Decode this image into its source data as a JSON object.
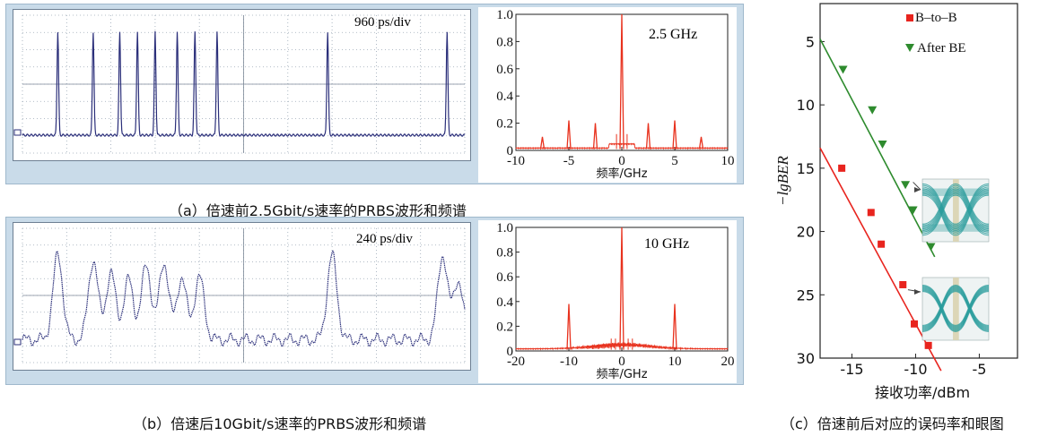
{
  "captions": {
    "a": "（a）倍速前2.5Gbit/s速率的PRBS波形和频谱",
    "b": "（b）倍速后10Gbit/s速率的PRBS波形和频谱",
    "c": "（c）倍速前后对应的误码率和眼图"
  },
  "colors": {
    "panel_bg": "#c9dbe9",
    "scope_trace": "#2b2f7a",
    "spectrum": "#e8321e",
    "b2b": "#e8241e",
    "after_be": "#2e8b2e",
    "eye": "#2a9c9c"
  },
  "chart_data": [
    {
      "id": "scope_a",
      "type": "line",
      "title": "",
      "annotation": "960 ps/div",
      "pulse_positions": [
        0.08,
        0.16,
        0.22,
        0.26,
        0.3,
        0.35,
        0.39,
        0.44,
        0.69,
        0.96
      ],
      "pulse_shape": "narrow"
    },
    {
      "id": "spectrum_a",
      "type": "line",
      "annotation": "2.5 GHz",
      "xlabel": "频率/GHz",
      "xlim": [
        -10,
        10
      ],
      "ylim": [
        0,
        1.0
      ],
      "xticks": [
        "-10",
        "-5",
        "0",
        "5",
        "10"
      ],
      "yticks": [
        "0",
        "0.2",
        "0.4",
        "0.6",
        "0.8",
        "1.0"
      ],
      "peaks": [
        {
          "x": -7.5,
          "y": 0.1
        },
        {
          "x": -5,
          "y": 0.22
        },
        {
          "x": -2.5,
          "y": 0.2
        },
        {
          "x": 0,
          "y": 1.0
        },
        {
          "x": 2.5,
          "y": 0.2
        },
        {
          "x": 5,
          "y": 0.22
        },
        {
          "x": 7.5,
          "y": 0.1
        }
      ]
    },
    {
      "id": "scope_b",
      "type": "line",
      "annotation": "240 ps/div",
      "pulse_positions": [
        0.08,
        0.16,
        0.2,
        0.24,
        0.28,
        0.32,
        0.36,
        0.4,
        0.7,
        0.95,
        0.985
      ],
      "pulse_shape": "wide"
    },
    {
      "id": "spectrum_b",
      "type": "line",
      "annotation": "10 GHz",
      "xlabel": "频率/GHz",
      "xlim": [
        -20,
        20
      ],
      "ylim": [
        0,
        1.0
      ],
      "xticks": [
        "-20",
        "-10",
        "0",
        "10",
        "20"
      ],
      "yticks": [
        "0",
        "0.2",
        "0.4",
        "0.6",
        "0.8",
        "1.0"
      ],
      "peaks": [
        {
          "x": -10,
          "y": 0.38
        },
        {
          "x": 0,
          "y": 1.0
        },
        {
          "x": 10,
          "y": 0.38
        }
      ]
    },
    {
      "id": "ber",
      "type": "scatter",
      "xlabel": "接收功率/dBm",
      "ylabel": "−lgBER",
      "xlim": [
        -17.5,
        -2
      ],
      "ylim": [
        30,
        2
      ],
      "xticks": [
        "-15",
        "-10",
        "-5"
      ],
      "yticks": [
        "5",
        "10",
        "15",
        "20",
        "25",
        "30"
      ],
      "series": [
        {
          "name": "B–to–B",
          "marker": "square",
          "points": [
            [
              -15.8,
              15
            ],
            [
              -13.5,
              18.5
            ],
            [
              -12.7,
              21
            ],
            [
              -11,
              24.2
            ],
            [
              -10.1,
              27.3
            ],
            [
              -9,
              29
            ]
          ],
          "fit": [
            [
              -17.5,
              13.4
            ],
            [
              -8.0,
              31.0
            ]
          ]
        },
        {
          "name": "After BE",
          "marker": "triangle-down",
          "points": [
            [
              -15.7,
              7.2
            ],
            [
              -13.4,
              10.4
            ],
            [
              -12.6,
              13.1
            ],
            [
              -10.8,
              16.3
            ],
            [
              -10.2,
              18.3
            ],
            [
              -8.8,
              21.2
            ]
          ],
          "fit": [
            [
              -17.5,
              4.8
            ],
            [
              -8.5,
              22.0
            ]
          ]
        }
      ]
    }
  ]
}
